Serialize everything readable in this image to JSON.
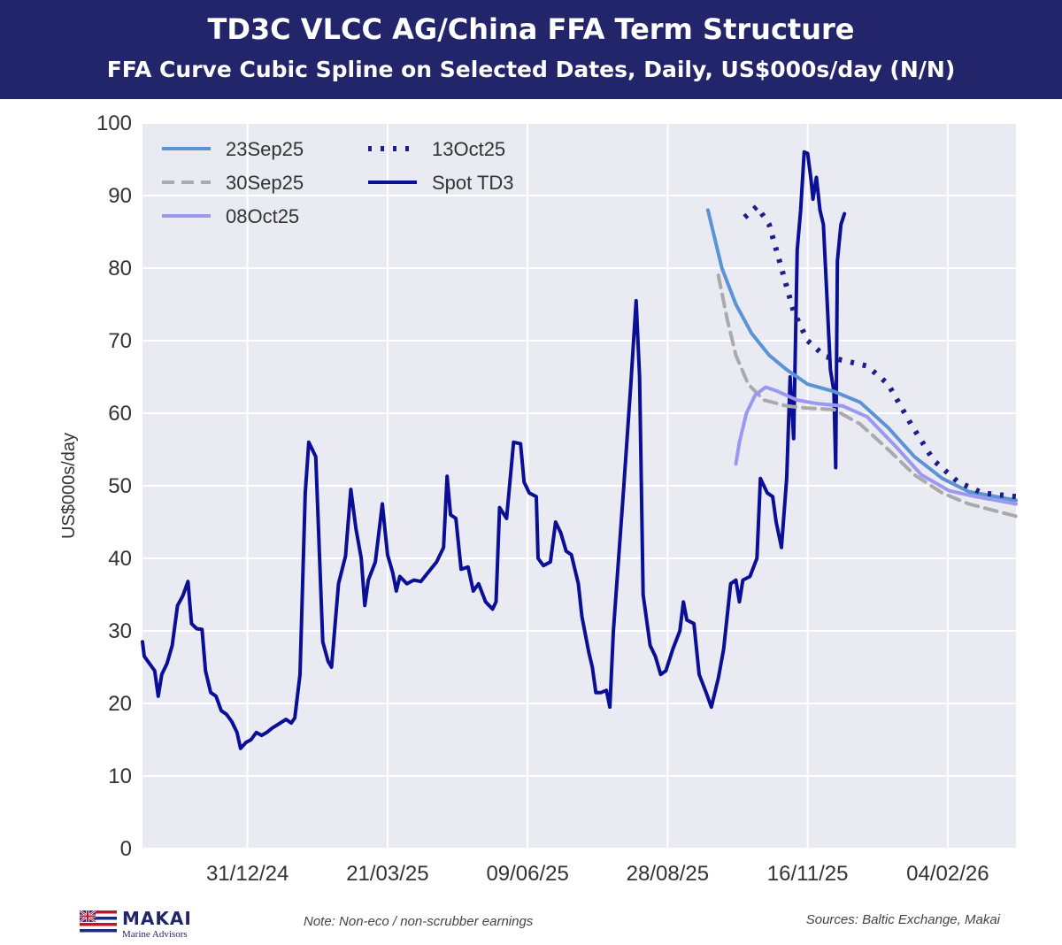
{
  "header": {
    "title": "TD3C VLCC AG/China FFA Term Structure",
    "subtitle": "FFA Curve Cubic Spline on Selected Dates, Daily, US$000s/day (N/N)"
  },
  "footer": {
    "note": "Note: Non-eco / non-scrubber earnings",
    "sources": "Sources: Baltic Exchange, Makai",
    "logo_name": "MAKAI",
    "logo_sub": "Marine Advisors"
  },
  "chart_data": {
    "type": "line",
    "ylabel": "US$000s/day",
    "ylim": [
      0,
      100
    ],
    "yticks": [
      0,
      10,
      20,
      30,
      40,
      50,
      60,
      70,
      80,
      90,
      100
    ],
    "xlim": [
      "2024-11-01",
      "2026-03-15"
    ],
    "xticks": [
      {
        "date": "2024-12-31",
        "label": "31/12/24"
      },
      {
        "date": "2025-03-21",
        "label": "21/03/25"
      },
      {
        "date": "2025-06-09",
        "label": "09/06/25"
      },
      {
        "date": "2025-08-28",
        "label": "28/08/25"
      },
      {
        "date": "2025-11-16",
        "label": "16/11/25"
      },
      {
        "date": "2026-02-04",
        "label": "04/02/26"
      }
    ],
    "grid": true,
    "legend_position": "top-left",
    "background": "#eaeaf2",
    "series": [
      {
        "name": "23Sep25",
        "color": "#5b93d4",
        "style": "solid",
        "points": [
          [
            "2025-09-20",
            88.0
          ],
          [
            "2025-09-28",
            80.0
          ],
          [
            "2025-10-06",
            75.0
          ],
          [
            "2025-10-15",
            71.0
          ],
          [
            "2025-10-25",
            68.0
          ],
          [
            "2025-11-04",
            66.0
          ],
          [
            "2025-11-16",
            64.0
          ],
          [
            "2025-12-01",
            63.0
          ],
          [
            "2025-12-16",
            61.5
          ],
          [
            "2026-01-01",
            58.0
          ],
          [
            "2026-01-16",
            54.0
          ],
          [
            "2026-02-01",
            51.0
          ],
          [
            "2026-02-16",
            49.2
          ],
          [
            "2026-03-15",
            48.0
          ]
        ]
      },
      {
        "name": "30Sep25",
        "color": "#aaaaaa",
        "style": "dashed",
        "points": [
          [
            "2025-09-26",
            79.0
          ],
          [
            "2025-10-01",
            73.0
          ],
          [
            "2025-10-06",
            68.0
          ],
          [
            "2025-10-13",
            64.0
          ],
          [
            "2025-10-22",
            61.8
          ],
          [
            "2025-11-04",
            61.0
          ],
          [
            "2025-11-16",
            60.7
          ],
          [
            "2025-12-01",
            60.5
          ],
          [
            "2025-12-16",
            58.5
          ],
          [
            "2026-01-01",
            55.0
          ],
          [
            "2026-01-16",
            51.5
          ],
          [
            "2026-02-01",
            49.0
          ],
          [
            "2026-02-16",
            47.5
          ],
          [
            "2026-03-15",
            45.8
          ]
        ]
      },
      {
        "name": "08Oct25",
        "color": "#9b98f0",
        "style": "solid",
        "points": [
          [
            "2025-10-06",
            53.0
          ],
          [
            "2025-10-08",
            56.0
          ],
          [
            "2025-10-12",
            60.0
          ],
          [
            "2025-10-17",
            62.5
          ],
          [
            "2025-10-23",
            63.6
          ],
          [
            "2025-10-30",
            63.0
          ],
          [
            "2025-11-10",
            61.8
          ],
          [
            "2025-11-22",
            61.3
          ],
          [
            "2025-12-06",
            61.0
          ],
          [
            "2025-12-20",
            59.5
          ],
          [
            "2026-01-05",
            55.5
          ],
          [
            "2026-01-20",
            51.5
          ],
          [
            "2026-02-05",
            49.3
          ],
          [
            "2026-02-20",
            48.5
          ],
          [
            "2026-03-15",
            47.5
          ]
        ]
      },
      {
        "name": "13Oct25",
        "color": "#1a1f8a",
        "style": "dotted",
        "points": [
          [
            "2025-10-11",
            87.0
          ],
          [
            "2025-10-18",
            88.5
          ],
          [
            "2025-10-25",
            86.0
          ],
          [
            "2025-11-01",
            80.0
          ],
          [
            "2025-11-08",
            74.0
          ],
          [
            "2025-11-16",
            70.0
          ],
          [
            "2025-11-26",
            67.8
          ],
          [
            "2025-12-08",
            67.2
          ],
          [
            "2025-12-20",
            66.5
          ],
          [
            "2026-01-01",
            64.0
          ],
          [
            "2026-01-14",
            58.5
          ],
          [
            "2026-01-27",
            53.5
          ],
          [
            "2026-02-10",
            50.5
          ],
          [
            "2026-02-24",
            49.0
          ],
          [
            "2026-03-15",
            48.5
          ]
        ]
      },
      {
        "name": "Spot TD3",
        "color": "#0a0f96",
        "style": "solid",
        "points": [
          [
            "2024-11-01",
            28.5
          ],
          [
            "2024-11-02",
            26.5
          ],
          [
            "2024-11-05",
            25.5
          ],
          [
            "2024-11-08",
            24.5
          ],
          [
            "2024-11-10",
            21.0
          ],
          [
            "2024-11-12",
            24.0
          ],
          [
            "2024-11-15",
            25.5
          ],
          [
            "2024-11-18",
            28.0
          ],
          [
            "2024-11-21",
            33.5
          ],
          [
            "2024-11-24",
            34.8
          ],
          [
            "2024-11-27",
            36.8
          ],
          [
            "2024-11-29",
            31.0
          ],
          [
            "2024-12-02",
            30.3
          ],
          [
            "2024-12-05",
            30.2
          ],
          [
            "2024-12-07",
            24.5
          ],
          [
            "2024-12-10",
            21.5
          ],
          [
            "2024-12-13",
            21.0
          ],
          [
            "2024-12-16",
            19.0
          ],
          [
            "2024-12-19",
            18.5
          ],
          [
            "2024-12-22",
            17.5
          ],
          [
            "2024-12-25",
            16.0
          ],
          [
            "2024-12-27",
            13.8
          ],
          [
            "2024-12-30",
            14.6
          ],
          [
            "2025-01-02",
            15.0
          ],
          [
            "2025-01-05",
            16.0
          ],
          [
            "2025-01-08",
            15.6
          ],
          [
            "2025-01-11",
            16.0
          ],
          [
            "2025-01-14",
            16.6
          ],
          [
            "2025-01-18",
            17.2
          ],
          [
            "2025-01-22",
            17.8
          ],
          [
            "2025-01-25",
            17.3
          ],
          [
            "2025-01-27",
            18.0
          ],
          [
            "2025-01-30",
            24.0
          ],
          [
            "2025-02-02",
            49.0
          ],
          [
            "2025-02-04",
            56.0
          ],
          [
            "2025-02-08",
            54.0
          ],
          [
            "2025-02-12",
            28.5
          ],
          [
            "2025-02-15",
            25.8
          ],
          [
            "2025-02-17",
            25.0
          ],
          [
            "2025-02-21",
            36.5
          ],
          [
            "2025-02-25",
            40.3
          ],
          [
            "2025-02-28",
            49.5
          ],
          [
            "2025-03-03",
            44.0
          ],
          [
            "2025-03-06",
            40.0
          ],
          [
            "2025-03-08",
            33.5
          ],
          [
            "2025-03-10",
            37.0
          ],
          [
            "2025-03-14",
            39.5
          ],
          [
            "2025-03-18",
            47.5
          ],
          [
            "2025-03-21",
            40.5
          ],
          [
            "2025-03-24",
            38.0
          ],
          [
            "2025-03-26",
            35.5
          ],
          [
            "2025-03-28",
            37.5
          ],
          [
            "2025-04-01",
            36.5
          ],
          [
            "2025-04-05",
            37.0
          ],
          [
            "2025-04-09",
            36.8
          ],
          [
            "2025-04-13",
            38.0
          ],
          [
            "2025-04-18",
            39.5
          ],
          [
            "2025-04-22",
            41.5
          ],
          [
            "2025-04-24",
            51.3
          ],
          [
            "2025-04-26",
            46.0
          ],
          [
            "2025-04-29",
            45.5
          ],
          [
            "2025-05-02",
            38.5
          ],
          [
            "2025-05-06",
            38.8
          ],
          [
            "2025-05-09",
            35.5
          ],
          [
            "2025-05-12",
            36.5
          ],
          [
            "2025-05-16",
            34.0
          ],
          [
            "2025-05-20",
            33.0
          ],
          [
            "2025-05-22",
            34.0
          ],
          [
            "2025-05-24",
            47.0
          ],
          [
            "2025-05-28",
            45.5
          ],
          [
            "2025-06-01",
            56.0
          ],
          [
            "2025-06-05",
            55.8
          ],
          [
            "2025-06-07",
            50.5
          ],
          [
            "2025-06-10",
            49.0
          ],
          [
            "2025-06-14",
            48.5
          ],
          [
            "2025-06-15",
            40.0
          ],
          [
            "2025-06-18",
            39.0
          ],
          [
            "2025-06-22",
            39.5
          ],
          [
            "2025-06-25",
            45.0
          ],
          [
            "2025-06-28",
            43.5
          ],
          [
            "2025-07-01",
            41.0
          ],
          [
            "2025-07-04",
            40.5
          ],
          [
            "2025-07-08",
            36.5
          ],
          [
            "2025-07-10",
            32.0
          ],
          [
            "2025-07-14",
            27.0
          ],
          [
            "2025-07-16",
            25.0
          ],
          [
            "2025-07-18",
            21.5
          ],
          [
            "2025-07-21",
            21.5
          ],
          [
            "2025-07-24",
            21.8
          ],
          [
            "2025-07-26",
            19.5
          ],
          [
            "2025-07-28",
            30.0
          ],
          [
            "2025-08-03",
            50.0
          ],
          [
            "2025-08-07",
            64.0
          ],
          [
            "2025-08-10",
            75.5
          ],
          [
            "2025-08-12",
            65.0
          ],
          [
            "2025-08-14",
            35.0
          ],
          [
            "2025-08-18",
            28.0
          ],
          [
            "2025-08-21",
            26.5
          ],
          [
            "2025-08-24",
            24.0
          ],
          [
            "2025-08-27",
            24.5
          ],
          [
            "2025-08-31",
            27.5
          ],
          [
            "2025-09-04",
            30.0
          ],
          [
            "2025-09-06",
            34.0
          ],
          [
            "2025-09-08",
            31.5
          ],
          [
            "2025-09-12",
            31.0
          ],
          [
            "2025-09-15",
            24.0
          ],
          [
            "2025-09-19",
            21.5
          ],
          [
            "2025-09-22",
            19.5
          ],
          [
            "2025-09-26",
            23.5
          ],
          [
            "2025-09-29",
            27.5
          ],
          [
            "2025-10-03",
            36.5
          ],
          [
            "2025-10-06",
            37.0
          ],
          [
            "2025-10-08",
            34.0
          ],
          [
            "2025-10-10",
            37.0
          ],
          [
            "2025-10-14",
            37.5
          ],
          [
            "2025-10-18",
            40.0
          ],
          [
            "2025-10-20",
            51.0
          ],
          [
            "2025-10-24",
            49.0
          ],
          [
            "2025-10-27",
            48.5
          ],
          [
            "2025-10-29",
            45.0
          ],
          [
            "2025-11-01",
            41.5
          ],
          [
            "2025-11-04",
            51.0
          ],
          [
            "2025-11-06",
            65.0
          ],
          [
            "2025-11-08",
            56.5
          ],
          [
            "2025-11-10",
            82.5
          ],
          [
            "2025-11-12",
            88.0
          ],
          [
            "2025-11-14",
            96.0
          ],
          [
            "2025-11-16",
            95.8
          ],
          [
            "2025-11-18",
            92.0
          ],
          [
            "2025-11-19",
            89.5
          ],
          [
            "2025-11-21",
            92.5
          ],
          [
            "2025-11-23",
            88.0
          ],
          [
            "2025-11-25",
            86.0
          ],
          [
            "2025-11-27",
            76.0
          ],
          [
            "2025-11-29",
            66.0
          ],
          [
            "2025-12-01",
            63.0
          ],
          [
            "2025-12-02",
            52.5
          ],
          [
            "2025-12-03",
            81.0
          ],
          [
            "2025-12-05",
            86.0
          ],
          [
            "2025-12-07",
            87.5
          ]
        ]
      }
    ]
  }
}
